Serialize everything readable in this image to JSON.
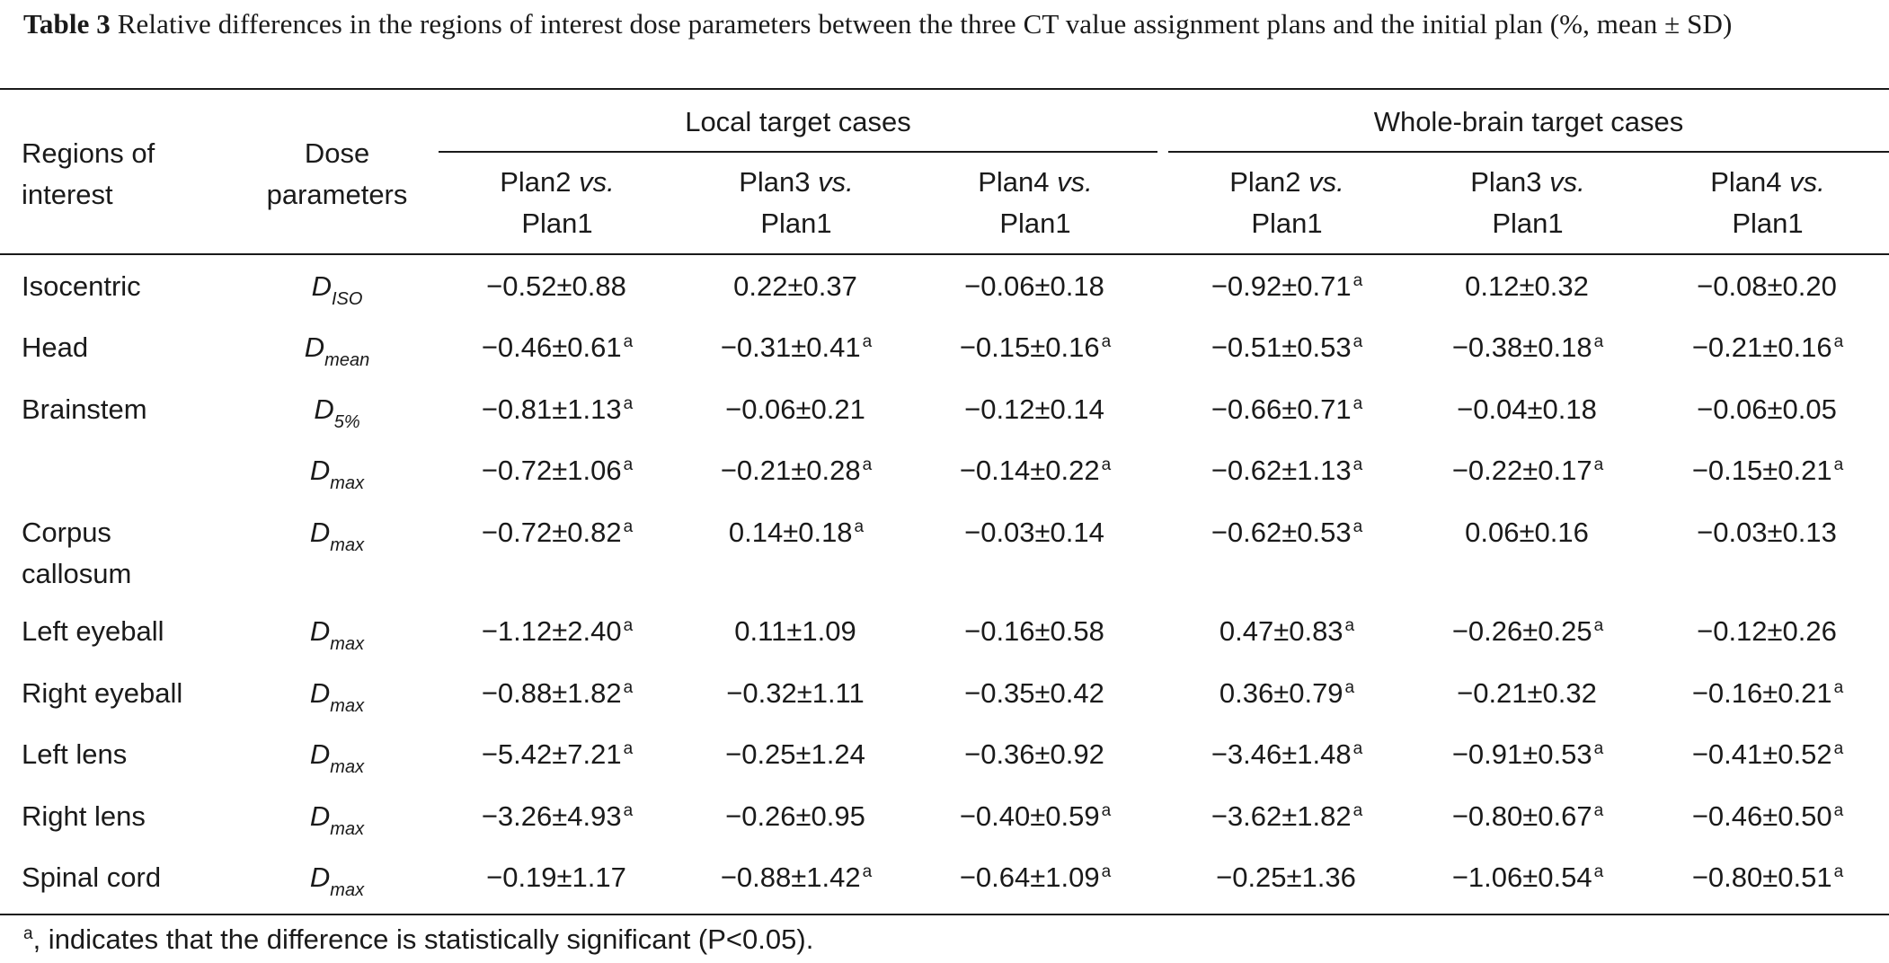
{
  "caption": {
    "label": "Table 3",
    "text": "Relative differences in the regions of interest dose parameters between the three CT value assignment plans and the initial plan (%, mean ± SD)"
  },
  "header": {
    "col_region": [
      "Regions of",
      "interest"
    ],
    "col_param": [
      "Dose",
      "parameters"
    ],
    "group_local": "Local target cases",
    "group_whole": "Whole-brain target cases",
    "plans": [
      {
        "a": "Plan2",
        "vs": "vs.",
        "b": "Plan1"
      },
      {
        "a": "Plan3",
        "vs": "vs.",
        "b": "Plan1"
      },
      {
        "a": "Plan4",
        "vs": "vs.",
        "b": "Plan1"
      },
      {
        "a": "Plan2",
        "vs": "vs.",
        "b": "Plan1"
      },
      {
        "a": "Plan3",
        "vs": "vs.",
        "b": "Plan1"
      },
      {
        "a": "Plan4",
        "vs": "vs.",
        "b": "Plan1"
      }
    ]
  },
  "rows": [
    {
      "region": "Isocentric",
      "param": "D",
      "param_sub": "ISO",
      "values": [
        {
          "v": "−0.52±0.88",
          "sig": ""
        },
        {
          "v": "0.22±0.37",
          "sig": ""
        },
        {
          "v": "−0.06±0.18",
          "sig": ""
        },
        {
          "v": "−0.92±0.71",
          "sig": "a"
        },
        {
          "v": "0.12±0.32",
          "sig": ""
        },
        {
          "v": "−0.08±0.20",
          "sig": ""
        }
      ]
    },
    {
      "region": "Head",
      "param": "D",
      "param_sub": "mean",
      "values": [
        {
          "v": "−0.46±0.61",
          "sig": "a"
        },
        {
          "v": "−0.31±0.41",
          "sig": "a"
        },
        {
          "v": "−0.15±0.16",
          "sig": "a"
        },
        {
          "v": "−0.51±0.53",
          "sig": "a"
        },
        {
          "v": "−0.38±0.18",
          "sig": "a"
        },
        {
          "v": "−0.21±0.16",
          "sig": "a"
        }
      ]
    },
    {
      "region": "Brainstem",
      "param": "D",
      "param_sub": "5%",
      "values": [
        {
          "v": "−0.81±1.13",
          "sig": "a"
        },
        {
          "v": "−0.06±0.21",
          "sig": ""
        },
        {
          "v": "−0.12±0.14",
          "sig": ""
        },
        {
          "v": "−0.66±0.71",
          "sig": "a"
        },
        {
          "v": "−0.04±0.18",
          "sig": ""
        },
        {
          "v": "−0.06±0.05",
          "sig": ""
        }
      ]
    },
    {
      "region": "",
      "param": "D",
      "param_sub": "max",
      "values": [
        {
          "v": "−0.72±1.06",
          "sig": "a"
        },
        {
          "v": "−0.21±0.28",
          "sig": "a"
        },
        {
          "v": "−0.14±0.22",
          "sig": "a"
        },
        {
          "v": "−0.62±1.13",
          "sig": "a"
        },
        {
          "v": "−0.22±0.17",
          "sig": "a"
        },
        {
          "v": "−0.15±0.21",
          "sig": "a"
        }
      ]
    },
    {
      "region": "Corpus",
      "region2": "callosum",
      "param": "D",
      "param_sub": "max",
      "values": [
        {
          "v": "−0.72±0.82",
          "sig": "a"
        },
        {
          "v": "0.14±0.18",
          "sig": "a"
        },
        {
          "v": "−0.03±0.14",
          "sig": ""
        },
        {
          "v": "−0.62±0.53",
          "sig": "a"
        },
        {
          "v": "0.06±0.16",
          "sig": ""
        },
        {
          "v": "−0.03±0.13",
          "sig": ""
        }
      ]
    },
    {
      "region": "Left eyeball",
      "param": "D",
      "param_sub": "max",
      "values": [
        {
          "v": "−1.12±2.40",
          "sig": "a"
        },
        {
          "v": "0.11±1.09",
          "sig": ""
        },
        {
          "v": "−0.16±0.58",
          "sig": ""
        },
        {
          "v": "0.47±0.83",
          "sig": "a"
        },
        {
          "v": "−0.26±0.25",
          "sig": "a"
        },
        {
          "v": "−0.12±0.26",
          "sig": ""
        }
      ]
    },
    {
      "region": "Right eyeball",
      "param": "D",
      "param_sub": "max",
      "values": [
        {
          "v": "−0.88±1.82",
          "sig": "a"
        },
        {
          "v": "−0.32±1.11",
          "sig": ""
        },
        {
          "v": "−0.35±0.42",
          "sig": ""
        },
        {
          "v": "0.36±0.79",
          "sig": "a"
        },
        {
          "v": "−0.21±0.32",
          "sig": ""
        },
        {
          "v": "−0.16±0.21",
          "sig": "a"
        }
      ]
    },
    {
      "region": "Left lens",
      "param": "D",
      "param_sub": "max",
      "values": [
        {
          "v": "−5.42±7.21",
          "sig": "a"
        },
        {
          "v": "−0.25±1.24",
          "sig": ""
        },
        {
          "v": "−0.36±0.92",
          "sig": ""
        },
        {
          "v": "−3.46±1.48",
          "sig": "a"
        },
        {
          "v": "−0.91±0.53",
          "sig": "a"
        },
        {
          "v": "−0.41±0.52",
          "sig": "a"
        }
      ]
    },
    {
      "region": "Right lens",
      "param": "D",
      "param_sub": "max",
      "values": [
        {
          "v": "−3.26±4.93",
          "sig": "a"
        },
        {
          "v": "−0.26±0.95",
          "sig": ""
        },
        {
          "v": "−0.40±0.59",
          "sig": "a"
        },
        {
          "v": "−3.62±1.82",
          "sig": "a"
        },
        {
          "v": "−0.80±0.67",
          "sig": "a"
        },
        {
          "v": "−0.46±0.50",
          "sig": "a"
        }
      ]
    },
    {
      "region": "Spinal cord",
      "param": "D",
      "param_sub": "max",
      "values": [
        {
          "v": "−0.19±1.17",
          "sig": ""
        },
        {
          "v": "−0.88±1.42",
          "sig": "a"
        },
        {
          "v": "−0.64±1.09",
          "sig": "a"
        },
        {
          "v": "−0.25±1.36",
          "sig": ""
        },
        {
          "v": "−1.06±0.54",
          "sig": "a"
        },
        {
          "v": "−0.80±0.51",
          "sig": "a"
        }
      ]
    }
  ],
  "footnote": {
    "sup": "a",
    "text": ", indicates that the difference is statistically significant (P<0.05)."
  }
}
